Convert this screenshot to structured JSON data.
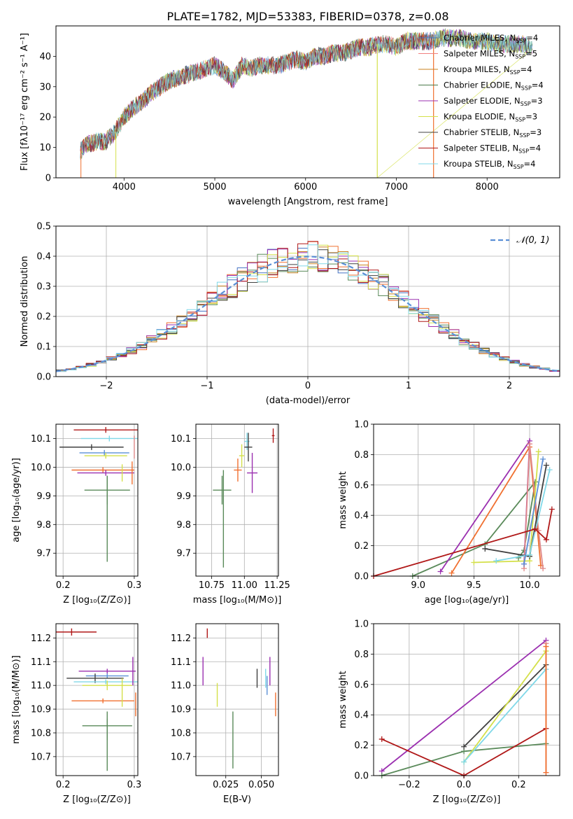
{
  "figure_title": "PLATE=1782, MJD=53383, FIBERID=0378, z=0.08",
  "panels": {
    "spectrum": {
      "xlabel": "wavelength [Angstrom, rest frame]",
      "ylabel": "Flux [fλ10⁻¹⁷ erg cm⁻² s⁻¹ A⁻¹]"
    },
    "residuals": {
      "xlabel": "(data-model)/error",
      "ylabel": "Normed distribution",
      "legend": "𝒩(0, 1)"
    },
    "age_z": {
      "xlabel": "Z [log₁₀(Z/Z⊙)]",
      "ylabel": "age  [log₁₀(age/yr)]"
    },
    "age_mass": {
      "xlabel": "mass [log₁₀(M/M⊙)]"
    },
    "weight_age": {
      "xlabel": "age  [log₁₀(age/yr)]",
      "ylabel": "mass weight"
    },
    "mass_z": {
      "xlabel": "Z [log₁₀(Z/Z⊙)]",
      "ylabel": "mass [log₁₀(M/M⊙)]"
    },
    "mass_ebv": {
      "xlabel": "E(B-V)"
    },
    "weight_z": {
      "xlabel": "Z [log₁₀(Z/Z⊙)]",
      "ylabel": "mass weight"
    }
  },
  "chart_data": [
    {
      "type": "line",
      "title": "PLATE=1782, MJD=53383, FIBERID=0378, z=0.08",
      "xlabel": "wavelength [Angstrom, rest frame]",
      "ylabel": "Flux [fλ10⁻¹⁷ erg cm⁻² s⁻¹ A⁻¹]",
      "xlim": [
        3250,
        8800
      ],
      "ylim": [
        0,
        50
      ],
      "xticks": [
        4000,
        5000,
        6000,
        7000,
        8000
      ],
      "yticks": [
        0,
        10,
        20,
        30,
        40
      ],
      "grid": false,
      "legend_position": "upper-right",
      "continuum": {
        "x": [
          3520,
          3600,
          3700,
          3800,
          3900,
          4000,
          4100,
          4200,
          4300,
          4400,
          4500,
          4600,
          4700,
          4800,
          4900,
          5000,
          5100,
          5200,
          5300,
          5400,
          5500,
          5600,
          5700,
          5800,
          5900,
          6000,
          6100,
          6200,
          6300,
          6400,
          6500,
          6600,
          6700,
          6800,
          6900,
          7000,
          7100,
          7200,
          7300,
          7400,
          7500,
          7600,
          7700,
          7800,
          7900,
          8000,
          8100,
          8200,
          8300,
          8400,
          8500
        ],
        "y": [
          9,
          11,
          12,
          12,
          15,
          20,
          23,
          25,
          28,
          30,
          32,
          33,
          34,
          35,
          36,
          37,
          35,
          32,
          37,
          36,
          37,
          37,
          37,
          38,
          39,
          38,
          40,
          40,
          41,
          41,
          42,
          43,
          43,
          44,
          44,
          43,
          45,
          45,
          45,
          45,
          46,
          46,
          46,
          45,
          45,
          45,
          44,
          44,
          44,
          44,
          43
        ]
      },
      "series": [
        {
          "name": "Chabrier MILES, N_SSP=4",
          "color": "#4472c4",
          "legend_label": "Chabrier MILES, N",
          "legend_sub": "SSP",
          "legend_suffix": "=4"
        },
        {
          "name": "Salpeter MILES, N_SSP=5",
          "color": "#f08080",
          "legend_label": "Salpeter MILES, N",
          "legend_sub": "SSP",
          "legend_suffix": "=5"
        },
        {
          "name": "Kroupa MILES, N_SSP=4",
          "color": "#c8801e",
          "legend_label": "Kroupa MILES, N",
          "legend_sub": "SSP",
          "legend_suffix": "=4"
        },
        {
          "name": "Chabrier ELODIE, N_SSP=4",
          "color": "#4a7a4a",
          "legend_label": "Chabrier ELODIE, N",
          "legend_sub": "SSP",
          "legend_suffix": "=4"
        },
        {
          "name": "Salpeter ELODIE, N_SSP=3",
          "color": "#9b30b0",
          "legend_label": "Salpeter ELODIE, N",
          "legend_sub": "SSP",
          "legend_suffix": "=3"
        },
        {
          "name": "Kroupa ELODIE, N_SSP=3",
          "color": "#d4e04a",
          "legend_label": "Kroupa ELODIE, N",
          "legend_sub": "SSP",
          "legend_suffix": "=3"
        },
        {
          "name": "Chabrier STELIB, N_SSP=3",
          "color": "#404040",
          "legend_label": "Chabrier STELIB, N",
          "legend_sub": "SSP",
          "legend_suffix": "=3"
        },
        {
          "name": "Salpeter STELIB, N_SSP=4",
          "color": "#b01818",
          "legend_label": "Salpeter STELIB, N",
          "legend_sub": "SSP",
          "legend_suffix": "=4"
        },
        {
          "name": "Kroupa STELIB, N_SSP=4",
          "color": "#80d8e8",
          "legend_label": "Kroupa STELIB, N",
          "legend_sub": "SSP",
          "legend_suffix": "=4"
        }
      ]
    },
    {
      "type": "histogram",
      "xlabel": "(data-model)/error",
      "ylabel": "Normed distribution",
      "xlim": [
        -2.5,
        2.5
      ],
      "ylim": [
        0,
        0.5
      ],
      "xticks": [
        -2,
        -1,
        0,
        1,
        2
      ],
      "yticks": [
        0.0,
        0.1,
        0.2,
        0.3,
        0.4,
        0.5
      ],
      "grid": true,
      "bin_width": 0.1,
      "reference": {
        "name": "𝒩(0, 1)",
        "color": "#5b8fd6",
        "style": "dashed"
      },
      "series": [
        {
          "color": "#4472c4"
        },
        {
          "color": "#f07030"
        },
        {
          "color": "#c8801e"
        },
        {
          "color": "#5a8a5a"
        },
        {
          "color": "#9b30b0"
        },
        {
          "color": "#d4e04a"
        },
        {
          "color": "#404040"
        },
        {
          "color": "#b01818"
        },
        {
          "color": "#80d8e8"
        }
      ]
    },
    {
      "type": "errorbar",
      "xlabel": "Z [log₁₀(Z/Z⊙)]",
      "ylabel": "age  [log₁₀(age/yr)]",
      "xlim": [
        0.19,
        0.305
      ],
      "ylim": [
        9.62,
        10.15
      ],
      "xticks": [
        0.2,
        0.3
      ],
      "yticks": [
        9.7,
        9.8,
        9.9,
        10.0,
        10.1
      ],
      "points": [
        {
          "x": 0.26,
          "y": 10.13,
          "xerr": 0.045,
          "yerr": 0.01,
          "color": "#b01818"
        },
        {
          "x": 0.265,
          "y": 10.1,
          "xerr": 0.04,
          "yerr": 0.01,
          "color": "#80d8e8"
        },
        {
          "x": 0.24,
          "y": 10.07,
          "xerr": 0.045,
          "yerr": 0.01,
          "color": "#404040"
        },
        {
          "x": 0.258,
          "y": 10.05,
          "xerr": 0.035,
          "yerr": 0.01,
          "color": "#5b8fd6"
        },
        {
          "x": 0.26,
          "y": 10.04,
          "xerr": 0.03,
          "yerr": 0.01,
          "color": "#d4e04a"
        },
        {
          "x": 0.256,
          "y": 9.99,
          "xerr": 0.044,
          "yerr": 0.01,
          "color": "#f07030"
        },
        {
          "x": 0.26,
          "y": 9.98,
          "xerr": 0.04,
          "yerr": 0.01,
          "color": "#9b30b0"
        },
        {
          "x": 0.262,
          "y": 9.92,
          "xerr": 0.032,
          "yerr": 0.05,
          "color": "#5a8a5a"
        },
        {
          "x": 0.262,
          "y": 9.82,
          "xerr": 0.0,
          "yerr": 0.15,
          "color": "#5a8a5a"
        },
        {
          "x": 0.283,
          "y": 9.98,
          "xerr": 0.0,
          "yerr": 0.03,
          "color": "#d4e04a"
        },
        {
          "x": 0.3,
          "y": 10.07,
          "xerr": 0.0,
          "yerr": 0.04,
          "color": "#e08888"
        },
        {
          "x": 0.297,
          "y": 9.98,
          "xerr": 0.0,
          "yerr": 0.04,
          "color": "#f07030"
        }
      ]
    },
    {
      "type": "errorbar",
      "xlabel": "mass [log₁₀(M/M⊙)]",
      "xlim": [
        10.63,
        11.26
      ],
      "ylim": [
        9.62,
        10.15
      ],
      "xticks": [
        10.75,
        11.0,
        11.25
      ],
      "yticks": [
        9.7,
        9.8,
        9.9,
        10.0,
        10.1
      ],
      "points": [
        {
          "x": 11.22,
          "y": 10.11,
          "xerr": 0.01,
          "yerr": 0.025,
          "color": "#b01818"
        },
        {
          "x": 11.02,
          "y": 10.09,
          "xerr": 0.02,
          "yerr": 0.03,
          "color": "#80d8e8"
        },
        {
          "x": 11.03,
          "y": 10.07,
          "xerr": 0.03,
          "yerr": 0.05,
          "color": "#404040"
        },
        {
          "x": 10.98,
          "y": 10.04,
          "xerr": 0.02,
          "yerr": 0.04,
          "color": "#d4e04a"
        },
        {
          "x": 10.95,
          "y": 9.99,
          "xerr": 0.03,
          "yerr": 0.04,
          "color": "#f07030"
        },
        {
          "x": 11.06,
          "y": 9.98,
          "xerr": 0.04,
          "yerr": 0.07,
          "color": "#9b30b0"
        },
        {
          "x": 10.83,
          "y": 9.92,
          "xerr": 0.07,
          "yerr": 0.05,
          "color": "#5a8a5a"
        },
        {
          "x": 10.84,
          "y": 9.82,
          "xerr": 0.0,
          "yerr": 0.17,
          "color": "#5a8a5a"
        }
      ]
    },
    {
      "type": "line",
      "xlabel": "age  [log₁₀(age/yr)]",
      "ylabel": "mass weight",
      "xlim": [
        8.6,
        10.27
      ],
      "ylim": [
        0,
        1
      ],
      "xticks": [
        9.0,
        9.5,
        10.0
      ],
      "yticks": [
        0.0,
        0.2,
        0.4,
        0.6,
        0.8,
        1.0
      ],
      "grid": true,
      "series": [
        {
          "color": "#5a8a5a",
          "x": [
            8.95,
            9.6,
            10.05,
            9.95,
            9.9
          ],
          "y": [
            0.0,
            0.21,
            0.62,
            0.17,
            0.12
          ]
        },
        {
          "color": "#f07030",
          "x": [
            9.3,
            10.0,
            10.1
          ],
          "y": [
            0.02,
            0.85,
            0.07
          ]
        },
        {
          "color": "#9b30b0",
          "x": [
            9.2,
            10.0,
            9.95
          ],
          "y": [
            0.03,
            0.89,
            0.08
          ]
        },
        {
          "color": "#e08888",
          "x": [
            9.95,
            10.0,
            10.08,
            10.12
          ],
          "y": [
            0.05,
            0.87,
            0.3,
            0.05
          ]
        },
        {
          "color": "#d4e04a",
          "x": [
            9.5,
            10.0,
            10.08
          ],
          "y": [
            0.09,
            0.1,
            0.82
          ]
        },
        {
          "color": "#404040",
          "x": [
            9.6,
            10.0,
            10.15
          ],
          "y": [
            0.18,
            0.13,
            0.73
          ]
        },
        {
          "color": "#80d8e8",
          "x": [
            9.7,
            10.0,
            10.18
          ],
          "y": [
            0.1,
            0.14,
            0.7
          ]
        },
        {
          "color": "#5b8fd6",
          "x": [
            9.95,
            10.12
          ],
          "y": [
            0.08,
            0.77
          ]
        },
        {
          "color": "#b01818",
          "x": [
            8.6,
            10.05,
            10.15,
            10.2
          ],
          "y": [
            0.0,
            0.31,
            0.24,
            0.44
          ]
        }
      ]
    },
    {
      "type": "errorbar",
      "xlabel": "Z [log₁₀(Z/Z⊙)]",
      "ylabel": "mass [log₁₀(M/M⊙)]",
      "xlim": [
        0.19,
        0.305
      ],
      "ylim": [
        10.62,
        11.26
      ],
      "xticks": [
        0.2,
        0.3
      ],
      "yticks": [
        10.7,
        10.8,
        10.9,
        11.0,
        11.1,
        11.2
      ],
      "points": [
        {
          "x": 0.212,
          "y": 11.225,
          "xerr": 0.035,
          "yerr": 0.015,
          "color": "#b01818"
        },
        {
          "x": 0.262,
          "y": 11.06,
          "xerr": 0.04,
          "yerr": 0.01,
          "color": "#9b30b0"
        },
        {
          "x": 0.262,
          "y": 11.04,
          "xerr": 0.03,
          "yerr": 0.01,
          "color": "#5b8fd6"
        },
        {
          "x": 0.245,
          "y": 11.03,
          "xerr": 0.04,
          "yerr": 0.02,
          "color": "#404040"
        },
        {
          "x": 0.26,
          "y": 11.015,
          "xerr": 0.045,
          "yerr": 0.01,
          "color": "#80d8e8"
        },
        {
          "x": 0.262,
          "y": 11.0,
          "xerr": 0.035,
          "yerr": 0.02,
          "color": "#d4e04a"
        },
        {
          "x": 0.256,
          "y": 10.935,
          "xerr": 0.044,
          "yerr": 0.01,
          "color": "#f07030"
        },
        {
          "x": 0.262,
          "y": 10.83,
          "xerr": 0.035,
          "yerr": 0.06,
          "color": "#5a8a5a"
        },
        {
          "x": 0.262,
          "y": 10.75,
          "xerr": 0.0,
          "yerr": 0.11,
          "color": "#5a8a5a"
        },
        {
          "x": 0.298,
          "y": 11.06,
          "xerr": 0.0,
          "yerr": 0.06,
          "color": "#9b30b0"
        },
        {
          "x": 0.283,
          "y": 10.97,
          "xerr": 0.0,
          "yerr": 0.06,
          "color": "#d4e04a"
        },
        {
          "x": 0.302,
          "y": 10.92,
          "xerr": 0.0,
          "yerr": 0.05,
          "color": "#f07030"
        }
      ]
    },
    {
      "type": "errorbar",
      "xlabel": "E(B-V)",
      "xlim": [
        0.004,
        0.062
      ],
      "ylim": [
        10.62,
        11.26
      ],
      "xticks": [
        0.025,
        0.05
      ],
      "xtick_labels": [
        "0.025",
        "0.050"
      ],
      "yticks": [
        10.7,
        10.8,
        10.9,
        11.0,
        11.1,
        11.2
      ],
      "points": [
        {
          "x": 0.012,
          "y": 11.22,
          "xerr": 0.0,
          "yerr": 0.02,
          "color": "#b01818"
        },
        {
          "x": 0.009,
          "y": 11.06,
          "xerr": 0.0,
          "yerr": 0.06,
          "color": "#9b30b0"
        },
        {
          "x": 0.019,
          "y": 10.96,
          "xerr": 0.0,
          "yerr": 0.05,
          "color": "#d4e04a"
        },
        {
          "x": 0.03,
          "y": 10.77,
          "xerr": 0.0,
          "yerr": 0.12,
          "color": "#5a8a5a"
        },
        {
          "x": 0.047,
          "y": 11.03,
          "xerr": 0.0,
          "yerr": 0.04,
          "color": "#404040"
        },
        {
          "x": 0.053,
          "y": 11.03,
          "xerr": 0.0,
          "yerr": 0.04,
          "color": "#80d8e8"
        },
        {
          "x": 0.054,
          "y": 11.0,
          "xerr": 0.0,
          "yerr": 0.04,
          "color": "#5b8fd6"
        },
        {
          "x": 0.056,
          "y": 11.06,
          "xerr": 0.0,
          "yerr": 0.06,
          "color": "#9b30b0"
        },
        {
          "x": 0.06,
          "y": 10.92,
          "xerr": 0.0,
          "yerr": 0.05,
          "color": "#f07030"
        }
      ]
    },
    {
      "type": "line",
      "xlabel": "Z [log₁₀(Z/Z⊙)]",
      "ylabel": "mass weight",
      "xlim": [
        -0.33,
        0.35
      ],
      "ylim": [
        0,
        1
      ],
      "xticks": [
        -0.2,
        0.0,
        0.2
      ],
      "xtick_labels": [
        "−0.2",
        "0.0",
        "0.2"
      ],
      "yticks": [
        0.0,
        0.2,
        0.4,
        0.6,
        0.8,
        1.0
      ],
      "grid": true,
      "series": [
        {
          "color": "#9b30b0",
          "x": [
            -0.3,
            0.3
          ],
          "y": [
            0.03,
            0.89
          ]
        },
        {
          "color": "#5a8a5a",
          "x": [
            -0.3,
            0.0,
            0.3
          ],
          "y": [
            0.0,
            0.16,
            0.21
          ]
        },
        {
          "color": "#b01818",
          "x": [
            -0.3,
            0.0,
            0.3
          ],
          "y": [
            0.24,
            0.0,
            0.31
          ]
        },
        {
          "color": "#404040",
          "x": [
            0.0,
            0.3
          ],
          "y": [
            0.19,
            0.73
          ]
        },
        {
          "color": "#d4e04a",
          "x": [
            0.0,
            0.3
          ],
          "y": [
            0.09,
            0.82
          ]
        },
        {
          "color": "#80d8e8",
          "x": [
            0.0,
            0.3
          ],
          "y": [
            0.09,
            0.7
          ]
        },
        {
          "color": "#e08888",
          "x": [
            0.3,
            0.3
          ],
          "y": [
            0.02,
            0.87
          ]
        },
        {
          "color": "#f07030",
          "x": [
            0.3,
            0.3
          ],
          "y": [
            0.02,
            0.85
          ]
        }
      ]
    }
  ]
}
